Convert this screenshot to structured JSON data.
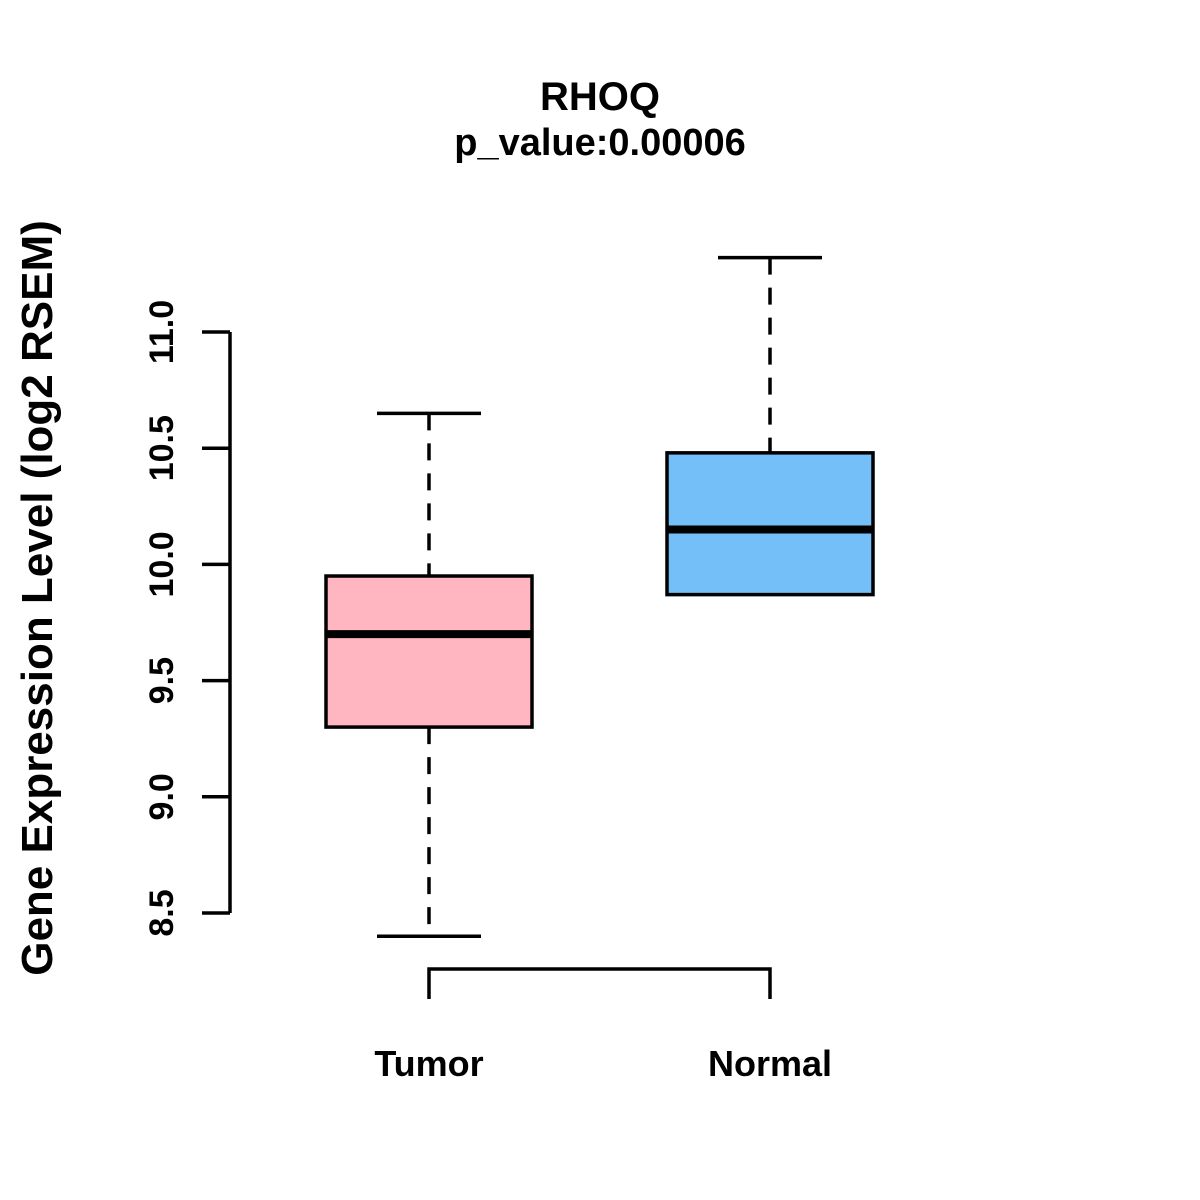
{
  "chart_data": {
    "type": "box",
    "title": "RHOQ",
    "subtitle": "p_value:0.00006",
    "ylabel": "Gene Expression Level (log2 RSEM)",
    "xlabel": "",
    "ylim": [
      8.5,
      11.0
    ],
    "ytick_labels": [
      "8.5",
      "9.0",
      "9.5",
      "10.0",
      "10.5",
      "11.0"
    ],
    "grid": "off",
    "categories": [
      "Tumor",
      "Normal"
    ],
    "groups": [
      {
        "label": "Tumor",
        "color": "#FFB6C1",
        "whisker_low": 8.4,
        "q1": 9.3,
        "median": 9.7,
        "q3": 9.95,
        "whisker_high": 10.65
      },
      {
        "label": "Normal",
        "color": "#74BFF7",
        "whisker_low": 9.87,
        "q1": 9.87,
        "median": 10.15,
        "q3": 10.48,
        "whisker_high": 11.32
      }
    ],
    "comparison_bracket": {
      "between": [
        "Tumor",
        "Normal"
      ]
    },
    "line_color": "#000000",
    "background": "#ffffff"
  }
}
